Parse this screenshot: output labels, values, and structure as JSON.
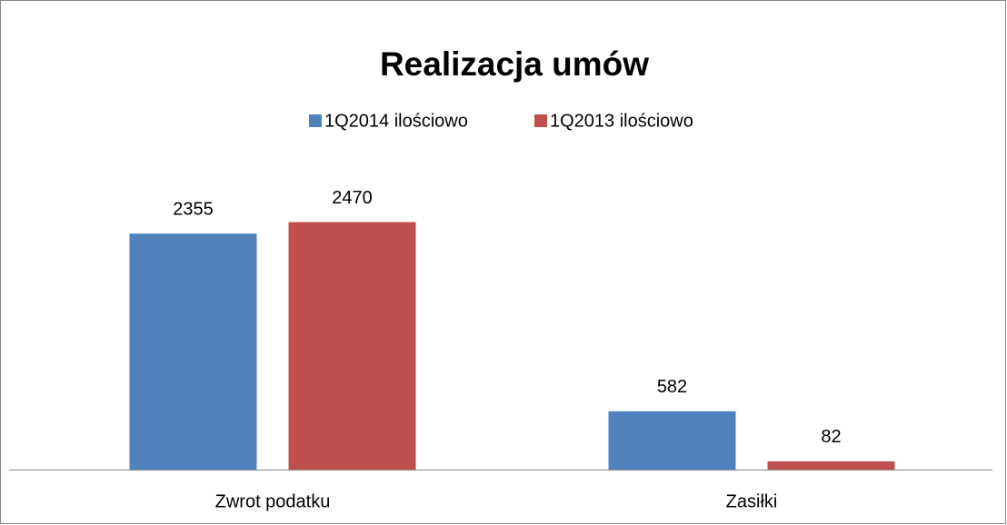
{
  "chart_data": {
    "type": "bar",
    "title": "Realizacja umów",
    "categories": [
      "Zwrot podatku",
      "Zasiłki"
    ],
    "series": [
      {
        "name": "1Q2014 ilościowo",
        "color": "#4f81bd",
        "values": [
          2355,
          582
        ]
      },
      {
        "name": "1Q2013 ilościowo",
        "color": "#c0504d",
        "values": [
          2470,
          82
        ]
      }
    ],
    "ylim": [
      0,
      3000
    ]
  }
}
